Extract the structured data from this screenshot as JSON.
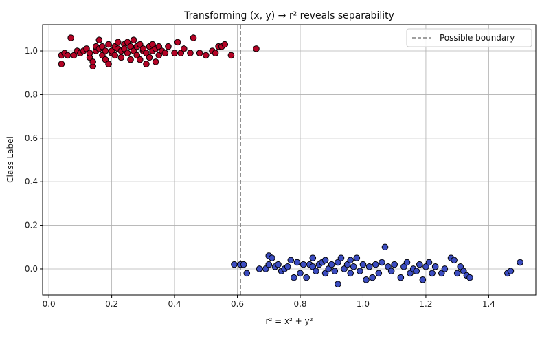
{
  "chart_data": {
    "type": "scatter",
    "title": "Transforming (x, y) → r² reveals separability",
    "xlabel": "r² = x² + y²",
    "ylabel": "Class Label",
    "xlim": [
      -0.02,
      1.55
    ],
    "ylim": [
      -0.12,
      1.12
    ],
    "xticks": [
      "0.0",
      "0.2",
      "0.4",
      "0.6",
      "0.8",
      "1.0",
      "1.2",
      "1.4"
    ],
    "xtick_values": [
      0.0,
      0.2,
      0.4,
      0.6,
      0.8,
      1.0,
      1.2,
      1.4
    ],
    "yticks": [
      "0.0",
      "0.2",
      "0.4",
      "0.6",
      "0.8",
      "1.0"
    ],
    "ytick_values": [
      0.0,
      0.2,
      0.4,
      0.6,
      0.8,
      1.0
    ],
    "grid": true,
    "legend_position": "top-right",
    "boundary": {
      "name": "Possible boundary",
      "x": 0.61,
      "style": "dashed",
      "color": "#808080"
    },
    "series": [
      {
        "color": "#b40426",
        "points": [
          [
            0.04,
            0.98
          ],
          [
            0.04,
            0.94
          ],
          [
            0.05,
            0.99
          ],
          [
            0.06,
            0.98
          ],
          [
            0.07,
            1.06
          ],
          [
            0.08,
            0.98
          ],
          [
            0.09,
            1.0
          ],
          [
            0.1,
            0.99
          ],
          [
            0.11,
            1.0
          ],
          [
            0.12,
            1.01
          ],
          [
            0.13,
            0.97
          ],
          [
            0.13,
            0.99
          ],
          [
            0.14,
            0.93
          ],
          [
            0.14,
            0.95
          ],
          [
            0.15,
            1.0
          ],
          [
            0.15,
            1.02
          ],
          [
            0.16,
            1.05
          ],
          [
            0.16,
            1.01
          ],
          [
            0.17,
            0.98
          ],
          [
            0.17,
            1.02
          ],
          [
            0.18,
            0.96
          ],
          [
            0.18,
            1.0
          ],
          [
            0.19,
            1.03
          ],
          [
            0.19,
            0.94
          ],
          [
            0.2,
            0.99
          ],
          [
            0.2,
            1.0
          ],
          [
            0.21,
            1.02
          ],
          [
            0.21,
            0.98
          ],
          [
            0.22,
            1.04
          ],
          [
            0.22,
            1.01
          ],
          [
            0.23,
            1.0
          ],
          [
            0.23,
            0.97
          ],
          [
            0.24,
            1.03
          ],
          [
            0.24,
            1.01
          ],
          [
            0.25,
            1.04
          ],
          [
            0.25,
            0.99
          ],
          [
            0.26,
            1.02
          ],
          [
            0.26,
            0.96
          ],
          [
            0.27,
            1.05
          ],
          [
            0.27,
            1.0
          ],
          [
            0.28,
            1.02
          ],
          [
            0.28,
            0.98
          ],
          [
            0.29,
            1.03
          ],
          [
            0.29,
            0.96
          ],
          [
            0.3,
            1.0
          ],
          [
            0.3,
            1.01
          ],
          [
            0.31,
            0.94
          ],
          [
            0.31,
            0.99
          ],
          [
            0.32,
            1.02
          ],
          [
            0.32,
            0.97
          ],
          [
            0.33,
            1.0
          ],
          [
            0.33,
            1.03
          ],
          [
            0.34,
            0.95
          ],
          [
            0.34,
            1.01
          ],
          [
            0.35,
            0.98
          ],
          [
            0.35,
            1.02
          ],
          [
            0.36,
            1.0
          ],
          [
            0.37,
            0.99
          ],
          [
            0.38,
            1.02
          ],
          [
            0.4,
            0.99
          ],
          [
            0.41,
            1.04
          ],
          [
            0.42,
            0.99
          ],
          [
            0.43,
            1.01
          ],
          [
            0.45,
            0.99
          ],
          [
            0.46,
            1.06
          ],
          [
            0.48,
            0.99
          ],
          [
            0.5,
            0.98
          ],
          [
            0.52,
            1.0
          ],
          [
            0.53,
            0.99
          ],
          [
            0.54,
            1.02
          ],
          [
            0.55,
            1.02
          ],
          [
            0.56,
            1.03
          ],
          [
            0.58,
            0.98
          ],
          [
            0.66,
            1.01
          ]
        ]
      },
      {
        "color": "#3b4cc0",
        "points": [
          [
            0.59,
            0.02
          ],
          [
            0.61,
            0.02
          ],
          [
            0.62,
            0.02
          ],
          [
            0.63,
            -0.02
          ],
          [
            0.67,
            0.0
          ],
          [
            0.69,
            0.0
          ],
          [
            0.7,
            0.02
          ],
          [
            0.7,
            0.06
          ],
          [
            0.71,
            0.05
          ],
          [
            0.72,
            0.01
          ],
          [
            0.73,
            0.02
          ],
          [
            0.74,
            -0.01
          ],
          [
            0.75,
            0.0
          ],
          [
            0.76,
            0.01
          ],
          [
            0.77,
            0.04
          ],
          [
            0.78,
            -0.04
          ],
          [
            0.79,
            0.03
          ],
          [
            0.8,
            -0.02
          ],
          [
            0.81,
            0.02
          ],
          [
            0.82,
            -0.04
          ],
          [
            0.83,
            0.02
          ],
          [
            0.84,
            0.01
          ],
          [
            0.84,
            0.05
          ],
          [
            0.85,
            -0.01
          ],
          [
            0.86,
            0.02
          ],
          [
            0.87,
            0.03
          ],
          [
            0.88,
            -0.02
          ],
          [
            0.88,
            0.04
          ],
          [
            0.89,
            0.0
          ],
          [
            0.9,
            0.02
          ],
          [
            0.91,
            -0.01
          ],
          [
            0.92,
            0.03
          ],
          [
            0.92,
            -0.07
          ],
          [
            0.93,
            0.05
          ],
          [
            0.94,
            0.0
          ],
          [
            0.95,
            0.02
          ],
          [
            0.96,
            -0.02
          ],
          [
            0.96,
            0.04
          ],
          [
            0.97,
            0.01
          ],
          [
            0.98,
            0.05
          ],
          [
            0.99,
            -0.01
          ],
          [
            1.0,
            0.02
          ],
          [
            1.01,
            -0.05
          ],
          [
            1.02,
            0.01
          ],
          [
            1.03,
            -0.04
          ],
          [
            1.04,
            0.02
          ],
          [
            1.05,
            -0.02
          ],
          [
            1.06,
            0.03
          ],
          [
            1.07,
            0.1
          ],
          [
            1.08,
            0.01
          ],
          [
            1.09,
            -0.01
          ],
          [
            1.1,
            0.02
          ],
          [
            1.12,
            -0.04
          ],
          [
            1.13,
            0.01
          ],
          [
            1.14,
            0.03
          ],
          [
            1.15,
            -0.02
          ],
          [
            1.16,
            0.0
          ],
          [
            1.17,
            -0.01
          ],
          [
            1.18,
            0.02
          ],
          [
            1.19,
            -0.05
          ],
          [
            1.2,
            0.01
          ],
          [
            1.21,
            0.03
          ],
          [
            1.22,
            -0.02
          ],
          [
            1.23,
            0.01
          ],
          [
            1.25,
            -0.02
          ],
          [
            1.26,
            0.0
          ],
          [
            1.28,
            0.05
          ],
          [
            1.29,
            0.04
          ],
          [
            1.3,
            -0.02
          ],
          [
            1.31,
            0.01
          ],
          [
            1.32,
            -0.01
          ],
          [
            1.33,
            -0.03
          ],
          [
            1.34,
            -0.04
          ],
          [
            1.46,
            -0.02
          ],
          [
            1.47,
            -0.01
          ],
          [
            1.5,
            0.03
          ]
        ]
      }
    ]
  }
}
